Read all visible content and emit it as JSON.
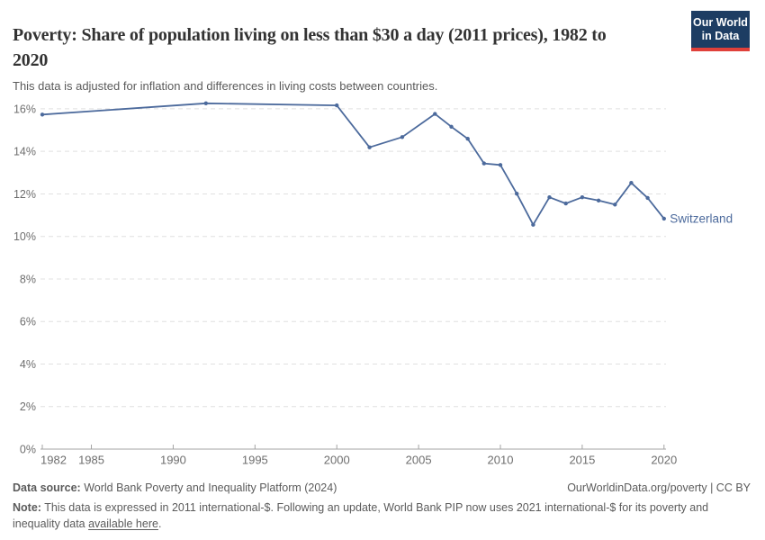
{
  "header": {
    "title": "Poverty: Share of population living on less than $30 a day (2011 prices), 1982 to 2020",
    "subtitle": "This data is adjusted for inflation and differences in living costs between countries.",
    "logo": {
      "line1": "Our World",
      "line2": "in Data"
    }
  },
  "chart_data": {
    "type": "line",
    "title": "Poverty: Share of population living on less than $30 a day (2011 prices), 1982 to 2020",
    "entity": "Switzerland",
    "x": [
      1982,
      1992,
      2000,
      2002,
      2004,
      2006,
      2007,
      2008,
      2009,
      2010,
      2011,
      2012,
      2013,
      2014,
      2015,
      2016,
      2017,
      2018,
      2019,
      2020
    ],
    "series": [
      {
        "name": "Switzerland",
        "color": "#4c6a9c",
        "values": [
          15.73,
          16.26,
          16.16,
          14.19,
          14.67,
          15.76,
          15.16,
          14.59,
          13.43,
          13.36,
          12.01,
          10.55,
          11.84,
          11.55,
          11.84,
          11.69,
          11.5,
          12.52,
          11.81,
          10.84
        ]
      }
    ],
    "xticks": [
      1982,
      1985,
      1990,
      1995,
      2000,
      2005,
      2010,
      2015,
      2020
    ],
    "yticks": [
      0,
      2,
      4,
      6,
      8,
      10,
      12,
      14,
      16
    ],
    "ytick_suffix": "%",
    "xlim": [
      1982,
      2020
    ],
    "ylim": [
      0,
      16.5
    ],
    "grid": "horizontal-dashed",
    "legend_position": "end-of-line-label",
    "end_label": "Switzerland"
  },
  "footer": {
    "source_label": "Data source:",
    "source_text": "World Bank Poverty and Inequality Platform (2024)",
    "attribution": "OurWorldinData.org/poverty | CC BY",
    "note_label": "Note:",
    "note_text": "This data is expressed in 2011 international-$. Following an update, World Bank PIP now uses 2021 international-$ for its poverty and inequality data",
    "note_link": "available here",
    "note_suffix": "."
  },
  "colors": {
    "line": "#4c6a9c",
    "grid": "#e0e0e0",
    "axis": "#a3a3a3",
    "tick_text": "#6e6e6e",
    "logo_bg": "#1d3d63",
    "logo_stripe": "#e0403a"
  }
}
